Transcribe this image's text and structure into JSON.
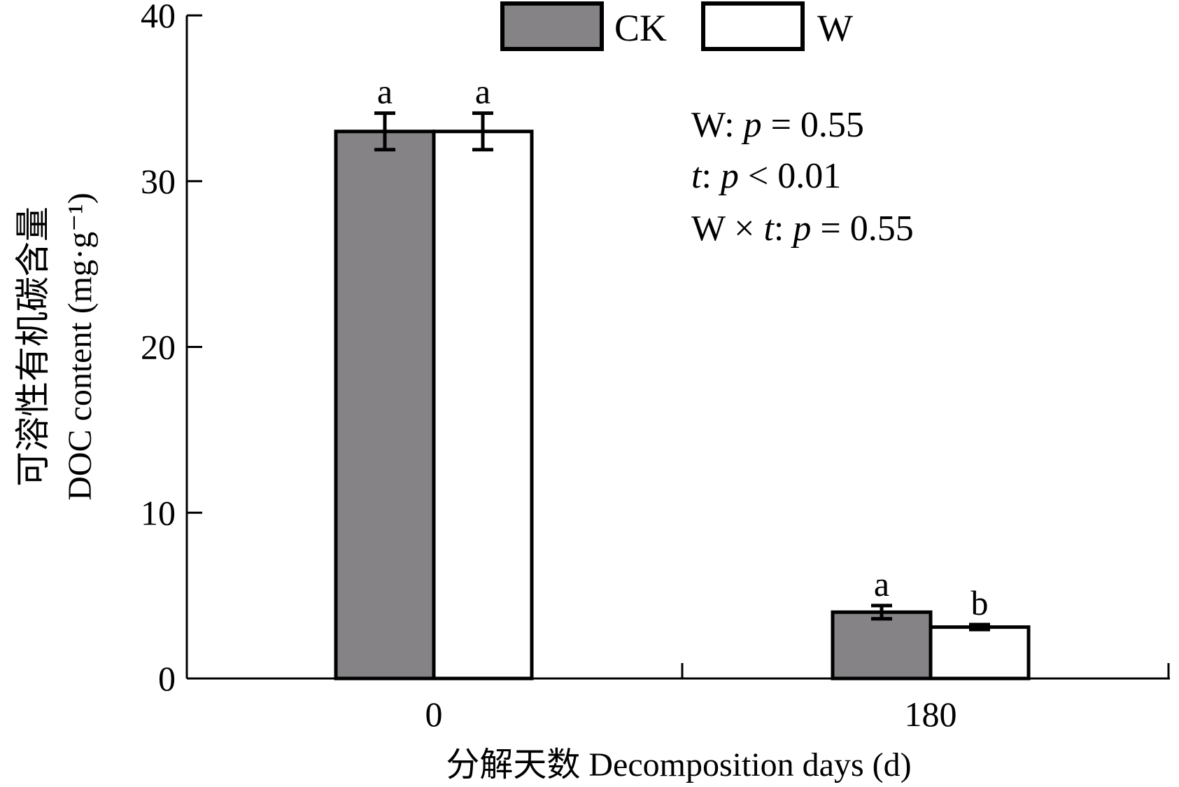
{
  "chart_data": {
    "type": "bar",
    "categories": [
      "0",
      "180"
    ],
    "series": [
      {
        "name": "CK",
        "color": "#858385",
        "values": [
          33.0,
          4.0
        ],
        "errors": [
          1.1,
          0.4
        ],
        "letters": [
          "a",
          "a"
        ]
      },
      {
        "name": "W",
        "color": "#ffffff",
        "values": [
          33.0,
          3.1
        ],
        "errors": [
          1.1,
          0.15
        ],
        "letters": [
          "a",
          "b"
        ]
      }
    ],
    "ylim": [
      0,
      40
    ],
    "yticks": [
      "0",
      "10",
      "20",
      "30",
      "40"
    ],
    "ylabel_zh": "可溶性有机碳含量",
    "ylabel_en": "DOC content (mg·g⁻¹)",
    "xlabel": "分解天数 Decomposition days (d)",
    "legend_position": "top-center",
    "grid": false,
    "stats": [
      {
        "pre": "W: ",
        "var": "p",
        "post": " = 0.55"
      },
      {
        "pre": "",
        "var": "t",
        "mid": ": ",
        "var2": "p",
        "post": " < 0.01"
      },
      {
        "pre": "W × ",
        "var": "t",
        "mid": ": ",
        "var2": "p",
        "post": " = 0.55"
      }
    ]
  }
}
